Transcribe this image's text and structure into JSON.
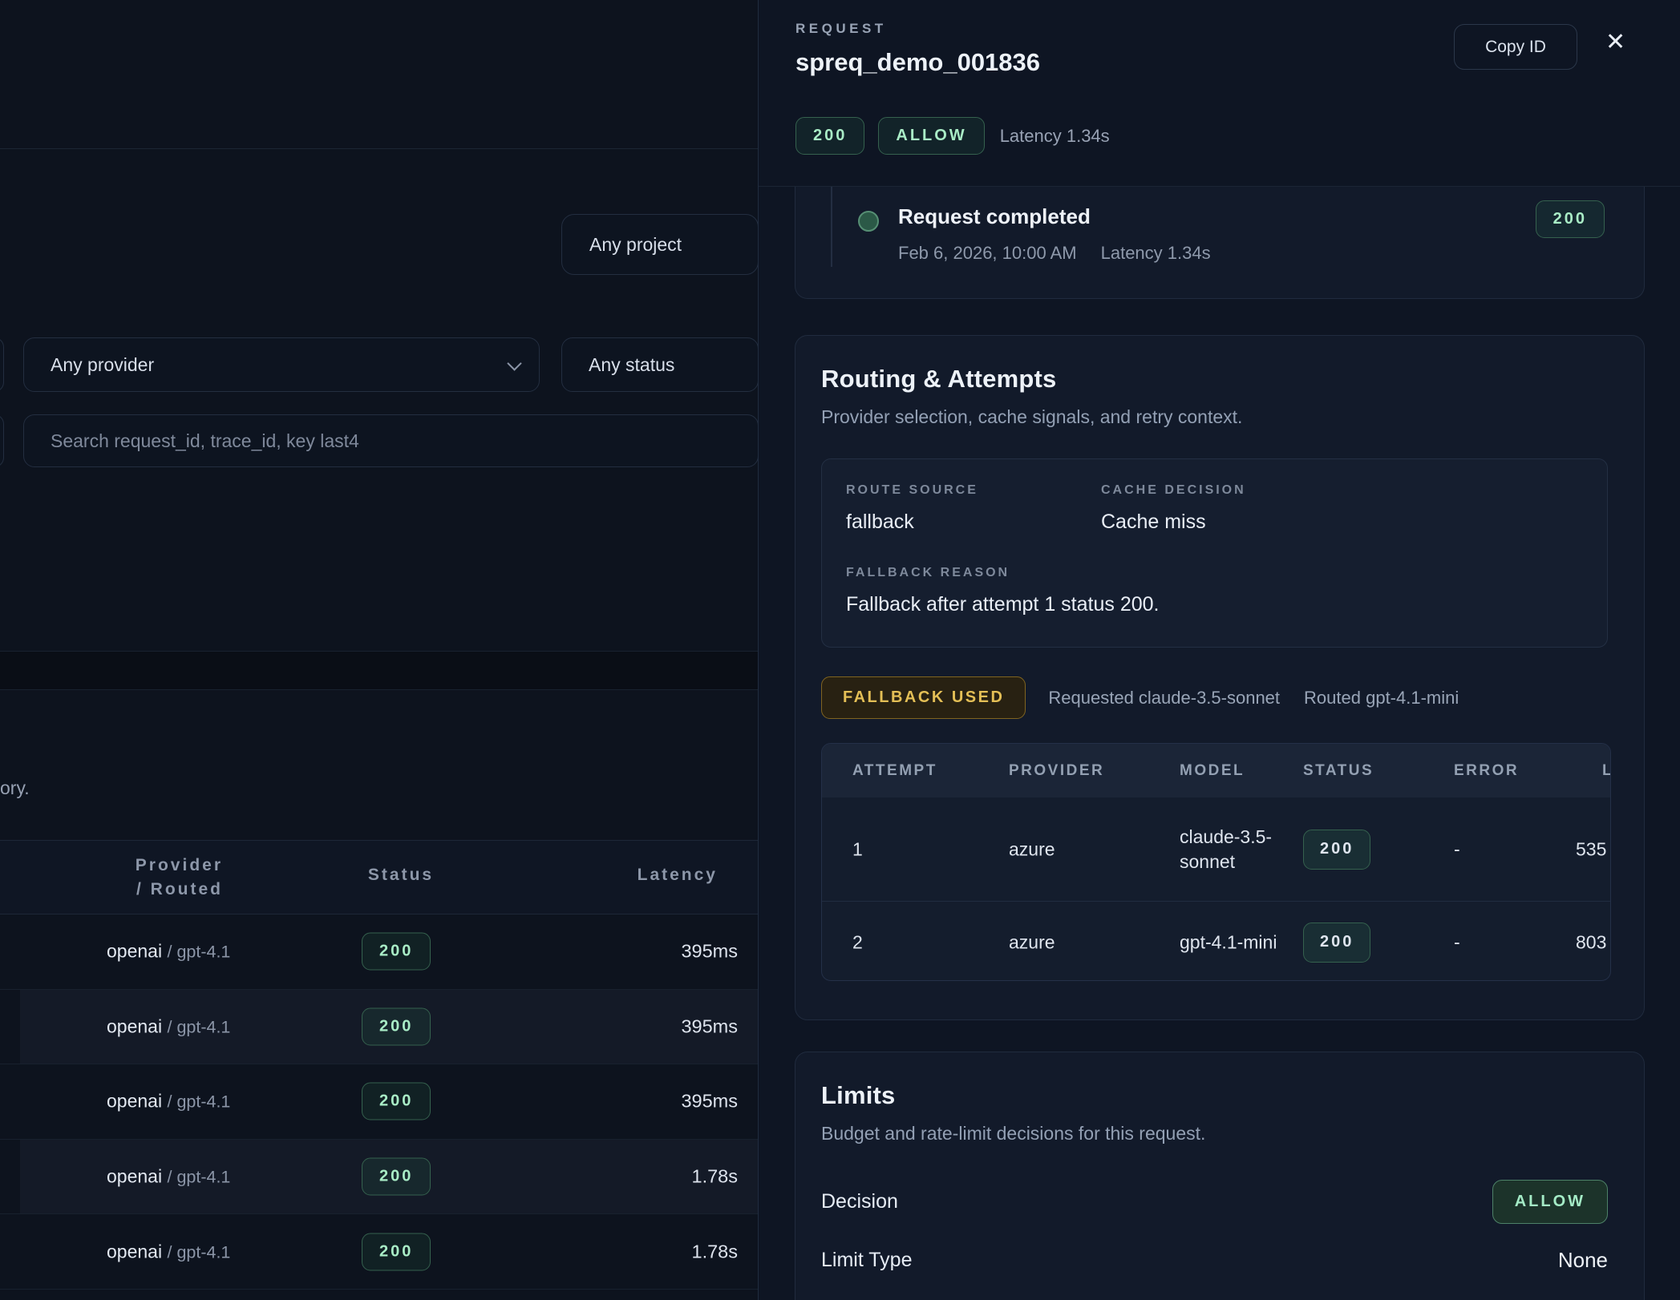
{
  "colors": {
    "background": "#0d131e",
    "panel_background": "#0e1523",
    "card_background": "#121a2a",
    "success_text": "#a9ecc6",
    "success_border": "#35614e",
    "warning_text": "#e4bf56",
    "warning_border": "#806420",
    "muted_text": "#93a0b4"
  },
  "left": {
    "filters": {
      "project": "Any project",
      "provider": "Any provider",
      "status": "Any status",
      "search_placeholder": "Search request_id, trace_id, key last4"
    },
    "partial_text": "ory.",
    "table": {
      "sep": "/",
      "col_provider_line1": "Provider",
      "col_provider_line2": "/ Routed",
      "col_status": "Status",
      "col_latency": "Latency",
      "rows": [
        {
          "provider": "openai",
          "routed": "gpt-4.1",
          "status": "200",
          "latency": "395ms"
        },
        {
          "provider": "openai",
          "routed": "gpt-4.1",
          "status": "200",
          "latency": "395ms"
        },
        {
          "provider": "openai",
          "routed": "gpt-4.1",
          "status": "200",
          "latency": "395ms"
        },
        {
          "provider": "openai",
          "routed": "gpt-4.1",
          "status": "200",
          "latency": "1.78s"
        },
        {
          "provider": "openai",
          "routed": "gpt-4.1",
          "status": "200",
          "latency": "1.78s"
        }
      ]
    }
  },
  "panel": {
    "header": {
      "label": "REQUEST",
      "id": "spreq_demo_001836",
      "status": "200",
      "decision": "ALLOW",
      "latency": "Latency 1.34s",
      "copy_button": "Copy ID",
      "close_glyph": "✕"
    },
    "timeline": {
      "event": "Request completed",
      "timestamp": "Feb 6, 2026, 10:00 AM",
      "latency": "Latency 1.34s",
      "status": "200"
    },
    "routing": {
      "title": "Routing & Attempts",
      "subtitle": "Provider selection, cache signals, and retry context.",
      "route_source_label": "ROUTE SOURCE",
      "route_source": "fallback",
      "cache_decision_label": "CACHE DECISION",
      "cache_decision": "Cache miss",
      "fallback_reason_label": "FALLBACK REASON",
      "fallback_reason": "Fallback after attempt 1 status 200.",
      "fallback_badge": "FALLBACK USED",
      "requested": "Requested claude-3.5-sonnet",
      "routed": "Routed gpt-4.1-mini",
      "attempts": {
        "columns": [
          "ATTEMPT",
          "PROVIDER",
          "MODEL",
          "STATUS",
          "ERROR",
          "LATENCY"
        ],
        "rows": [
          {
            "attempt": "1",
            "provider": "azure",
            "model": "claude-3.5-sonnet",
            "status": "200",
            "error": "-",
            "latency": "535"
          },
          {
            "attempt": "2",
            "provider": "azure",
            "model": "gpt-4.1-mini",
            "status": "200",
            "error": "-",
            "latency": "803"
          }
        ]
      }
    },
    "limits": {
      "title": "Limits",
      "subtitle": "Budget and rate-limit decisions for this request.",
      "decision_label": "Decision",
      "decision_value": "ALLOW",
      "limit_type_label": "Limit Type",
      "limit_type_value": "None"
    }
  }
}
